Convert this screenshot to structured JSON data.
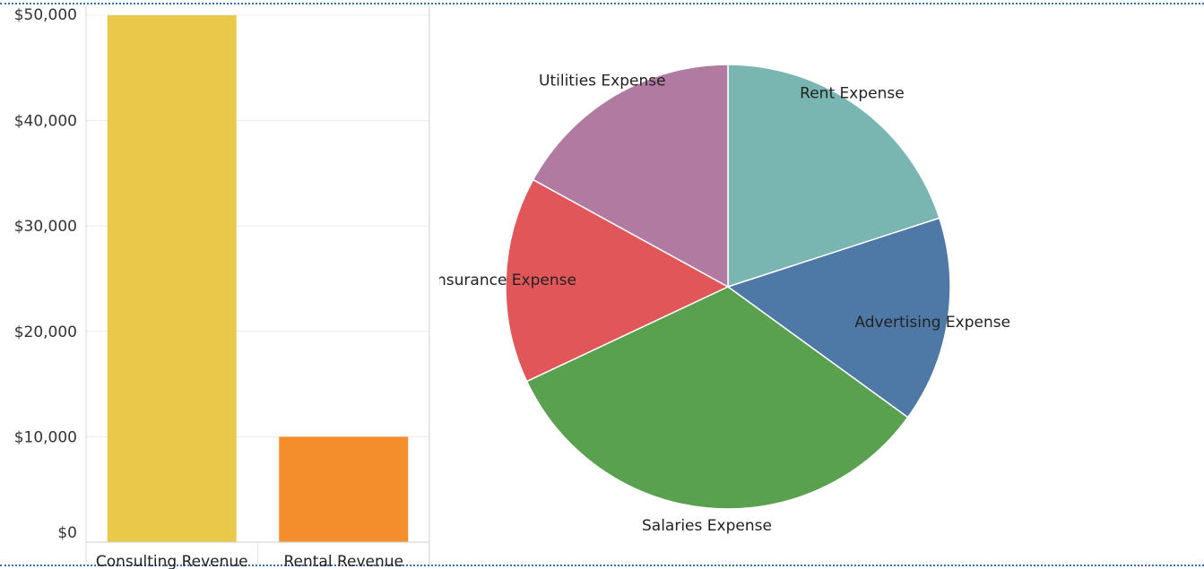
{
  "chart_data": [
    {
      "type": "bar",
      "categories": [
        "Consulting Revenue",
        "Rental Revenue"
      ],
      "values": [
        50000,
        10000
      ],
      "ylim": [
        0,
        50000
      ],
      "y_ticks": [
        "$0",
        "$10,000",
        "$20,000",
        "$30,000",
        "$40,000",
        "$50,000"
      ],
      "y_tick_values": [
        0,
        10000,
        20000,
        30000,
        40000,
        50000
      ],
      "colors": [
        "#EAC84A",
        "#F28E2B"
      ],
      "grid": true
    },
    {
      "type": "pie",
      "slices": [
        {
          "label": "Rent Expense",
          "value": 20,
          "color": "#79B6B2"
        },
        {
          "label": "Advertising Expense",
          "value": 15,
          "color": "#4E79A7"
        },
        {
          "label": "Salaries Expense",
          "value": 33,
          "color": "#59A14F"
        },
        {
          "label": "Insurance Expense",
          "value": 15,
          "color": "#E15759"
        },
        {
          "label": "Utilities Expense",
          "value": 17,
          "color": "#B07AA1"
        }
      ]
    }
  ]
}
